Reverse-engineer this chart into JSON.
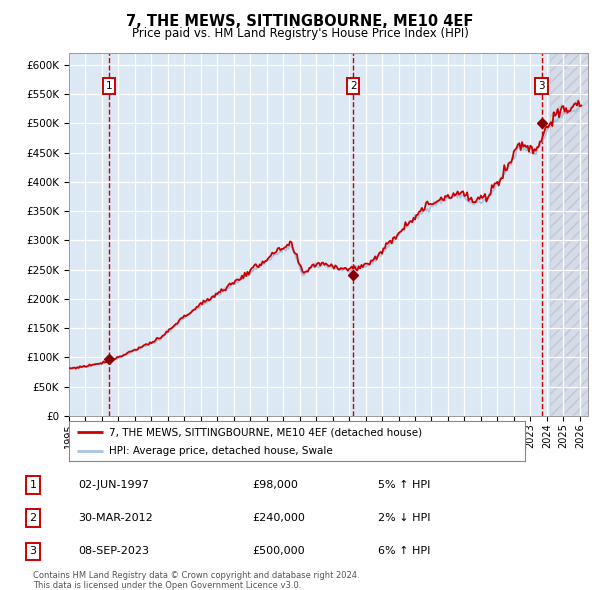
{
  "title": "7, THE MEWS, SITTINGBOURNE, ME10 4EF",
  "subtitle": "Price paid vs. HM Land Registry's House Price Index (HPI)",
  "legend_line1": "7, THE MEWS, SITTINGBOURNE, ME10 4EF (detached house)",
  "legend_line2": "HPI: Average price, detached house, Swale",
  "footer_line1": "Contains HM Land Registry data © Crown copyright and database right 2024.",
  "footer_line2": "This data is licensed under the Open Government Licence v3.0.",
  "transactions": [
    {
      "num": 1,
      "date": "02-JUN-1997",
      "price": 98000,
      "hpi_pct": "5% ↑ HPI",
      "x_year": 1997.42
    },
    {
      "num": 2,
      "date": "30-MAR-2012",
      "price": 240000,
      "hpi_pct": "2% ↓ HPI",
      "x_year": 2012.25
    },
    {
      "num": 3,
      "date": "08-SEP-2023",
      "price": 500000,
      "hpi_pct": "6% ↑ HPI",
      "x_year": 2023.69
    }
  ],
  "hpi_color": "#a8c4e0",
  "price_color": "#cc0000",
  "dot_color": "#8b0000",
  "vline_color": "#cc0000",
  "box_color": "#cc0000",
  "bg_color": "#dce9f5",
  "grid_color": "#ffffff",
  "ylim": [
    0,
    620000
  ],
  "xlim_start": 1995.0,
  "xlim_end": 2026.5,
  "yticks": [
    0,
    50000,
    100000,
    150000,
    200000,
    250000,
    300000,
    350000,
    400000,
    450000,
    500000,
    550000,
    600000
  ],
  "hatch_start": 2024.17
}
